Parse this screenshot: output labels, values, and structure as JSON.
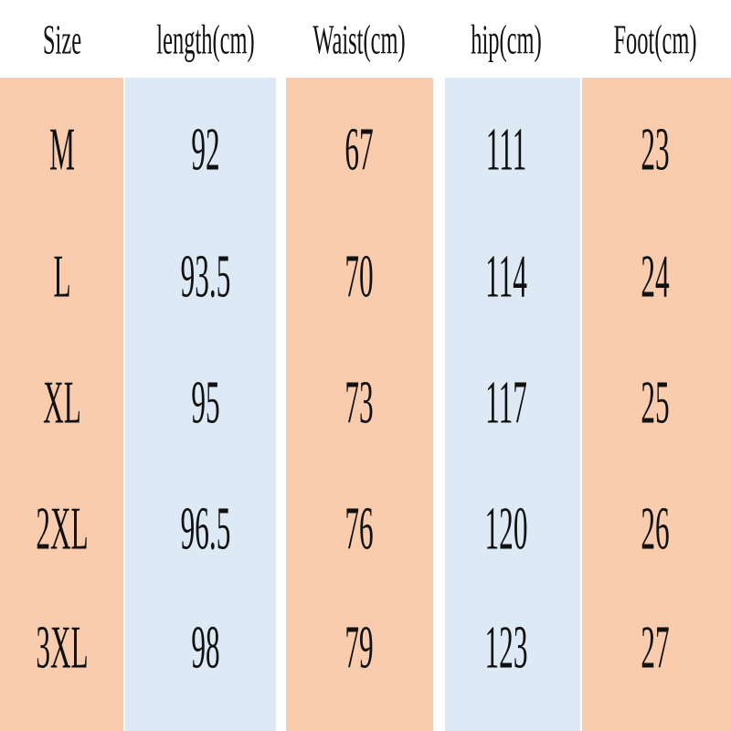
{
  "table": {
    "header": [
      "Size",
      "length(cm)",
      "Waist(cm)",
      "hip(cm)",
      "Foot(cm)"
    ],
    "rows": [
      [
        "M",
        92,
        67,
        111,
        23
      ],
      [
        "L",
        93.5,
        70,
        114,
        24
      ],
      [
        "XL",
        95,
        73,
        117,
        25
      ],
      [
        "2XL",
        96.5,
        76,
        120,
        26
      ],
      [
        "3XL",
        98,
        79,
        123,
        27
      ]
    ]
  }
}
